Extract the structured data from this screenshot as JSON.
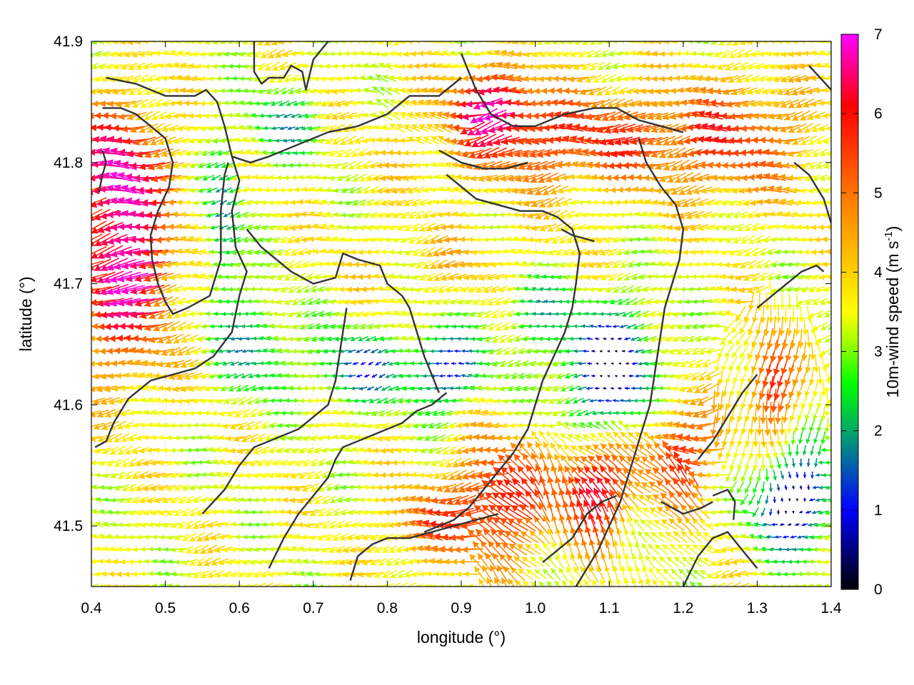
{
  "chart_data": {
    "type": "vector-field",
    "xlabel": "longitude (°)",
    "ylabel": "latitude (°)",
    "xlim": [
      0.4,
      1.4
    ],
    "ylim": [
      41.45,
      41.9
    ],
    "x_ticks": [
      "0.4",
      "0.5",
      "0.6",
      "0.7",
      "0.8",
      "0.9",
      "1.0",
      "1.1",
      "1.2",
      "1.3",
      "1.4"
    ],
    "x_tick_values": [
      0.4,
      0.5,
      0.6,
      0.7,
      0.8,
      0.9,
      1.0,
      1.1,
      1.2,
      1.3,
      1.4
    ],
    "y_ticks": [
      "41.5",
      "41.6",
      "41.7",
      "41.8",
      "41.9"
    ],
    "y_tick_values": [
      41.5,
      41.6,
      41.7,
      41.8,
      41.9
    ],
    "grid": true,
    "colorbar": {
      "label": "10m-wind speed (m s-1)",
      "label_main": "10m-wind speed (m s",
      "label_sup": "-1",
      "label_end": ")",
      "range": [
        0,
        7
      ],
      "ticks": [
        "0",
        "1",
        "2",
        "3",
        "4",
        "5",
        "6",
        "7"
      ],
      "tick_values": [
        0,
        1,
        2,
        3,
        4,
        5,
        6,
        7
      ],
      "colormap": [
        "#000000",
        "#0000ff",
        "#00ff00",
        "#ffff00",
        "#ffa500",
        "#ff0000",
        "#ff00ff"
      ]
    },
    "contour_color": "#333333",
    "contours": [
      [
        [
          0.42,
          41.87
        ],
        [
          0.46,
          41.865
        ],
        [
          0.5,
          41.855
        ],
        [
          0.54,
          41.855
        ],
        [
          0.555,
          41.86
        ],
        [
          0.57,
          41.85
        ],
        [
          0.58,
          41.83
        ],
        [
          0.59,
          41.805
        ],
        [
          0.615,
          41.8
        ],
        [
          0.64,
          41.805
        ],
        [
          0.68,
          41.815
        ],
        [
          0.72,
          41.825
        ],
        [
          0.76,
          41.83
        ],
        [
          0.8,
          41.84
        ],
        [
          0.83,
          41.855
        ],
        [
          0.87,
          41.855
        ],
        [
          0.9,
          41.87
        ]
      ],
      [
        [
          0.415,
          41.845
        ],
        [
          0.44,
          41.845
        ],
        [
          0.46,
          41.84
        ],
        [
          0.48,
          41.83
        ],
        [
          0.5,
          41.82
        ],
        [
          0.51,
          41.8
        ],
        [
          0.505,
          41.78
        ],
        [
          0.49,
          41.76
        ],
        [
          0.48,
          41.74
        ],
        [
          0.482,
          41.72
        ],
        [
          0.49,
          41.7
        ],
        [
          0.5,
          41.685
        ],
        [
          0.51,
          41.675
        ],
        [
          0.53,
          41.68
        ],
        [
          0.56,
          41.69
        ],
        [
          0.575,
          41.72
        ],
        [
          0.575,
          41.76
        ],
        [
          0.58,
          41.79
        ],
        [
          0.585,
          41.8
        ]
      ],
      [
        [
          0.41,
          41.775
        ],
        [
          0.415,
          41.79
        ],
        [
          0.42,
          41.8
        ],
        [
          0.415,
          41.81
        ]
      ],
      [
        [
          0.59,
          41.805
        ],
        [
          0.6,
          41.785
        ],
        [
          0.59,
          41.76
        ],
        [
          0.595,
          41.73
        ],
        [
          0.61,
          41.71
        ],
        [
          0.6,
          41.69
        ],
        [
          0.59,
          41.66
        ],
        [
          0.565,
          41.64
        ],
        [
          0.54,
          41.63
        ],
        [
          0.51,
          41.625
        ],
        [
          0.48,
          41.62
        ],
        [
          0.45,
          41.605
        ],
        [
          0.43,
          41.585
        ],
        [
          0.42,
          41.57
        ],
        [
          0.405,
          41.565
        ]
      ],
      [
        [
          0.62,
          41.9
        ],
        [
          0.62,
          41.875
        ],
        [
          0.63,
          41.865
        ],
        [
          0.64,
          41.87
        ],
        [
          0.66,
          41.87
        ],
        [
          0.67,
          41.88
        ],
        [
          0.685,
          41.875
        ],
        [
          0.69,
          41.86
        ],
        [
          0.7,
          41.885
        ],
        [
          0.72,
          41.9
        ]
      ],
      [
        [
          0.61,
          41.745
        ],
        [
          0.63,
          41.73
        ],
        [
          0.65,
          41.72
        ],
        [
          0.67,
          41.71
        ],
        [
          0.7,
          41.7
        ],
        [
          0.73,
          41.705
        ],
        [
          0.74,
          41.725
        ],
        [
          0.76,
          41.72
        ],
        [
          0.79,
          41.715
        ],
        [
          0.8,
          41.7
        ],
        [
          0.82,
          41.69
        ],
        [
          0.83,
          41.68
        ],
        [
          0.84,
          41.66
        ],
        [
          0.85,
          41.64
        ],
        [
          0.86,
          41.625
        ],
        [
          0.87,
          41.61
        ]
      ],
      [
        [
          0.64,
          41.465
        ],
        [
          0.66,
          41.49
        ],
        [
          0.68,
          41.51
        ],
        [
          0.7,
          41.525
        ],
        [
          0.72,
          41.54
        ],
        [
          0.73,
          41.555
        ],
        [
          0.74,
          41.565
        ],
        [
          0.76,
          41.57
        ],
        [
          0.78,
          41.575
        ],
        [
          0.8,
          41.58
        ],
        [
          0.82,
          41.585
        ],
        [
          0.84,
          41.595
        ],
        [
          0.86,
          41.6
        ],
        [
          0.88,
          41.61
        ]
      ],
      [
        [
          0.55,
          41.51
        ],
        [
          0.58,
          41.53
        ],
        [
          0.6,
          41.55
        ],
        [
          0.62,
          41.565
        ],
        [
          0.64,
          41.57
        ],
        [
          0.66,
          41.575
        ],
        [
          0.68,
          41.58
        ],
        [
          0.7,
          41.59
        ],
        [
          0.72,
          41.6
        ],
        [
          0.73,
          41.62
        ],
        [
          0.735,
          41.64
        ],
        [
          0.74,
          41.66
        ],
        [
          0.745,
          41.68
        ]
      ],
      [
        [
          0.75,
          41.455
        ],
        [
          0.76,
          41.475
        ],
        [
          0.78,
          41.485
        ],
        [
          0.8,
          41.49
        ],
        [
          0.83,
          41.49
        ],
        [
          0.86,
          41.495
        ],
        [
          0.89,
          41.5
        ],
        [
          0.92,
          41.505
        ],
        [
          0.95,
          41.51
        ]
      ],
      [
        [
          0.9,
          41.89
        ],
        [
          0.92,
          41.86
        ],
        [
          0.94,
          41.84
        ],
        [
          0.97,
          41.83
        ],
        [
          1.0,
          41.83
        ],
        [
          1.04,
          41.84
        ],
        [
          1.08,
          41.845
        ],
        [
          1.11,
          41.845
        ],
        [
          1.14,
          41.835
        ],
        [
          1.17,
          41.83
        ],
        [
          1.2,
          41.825
        ]
      ],
      [
        [
          0.87,
          41.81
        ],
        [
          0.9,
          41.8
        ],
        [
          0.93,
          41.795
        ],
        [
          0.96,
          41.795
        ],
        [
          0.99,
          41.8
        ]
      ],
      [
        [
          0.88,
          41.79
        ],
        [
          0.9,
          41.78
        ],
        [
          0.92,
          41.77
        ],
        [
          0.95,
          41.765
        ],
        [
          0.98,
          41.76
        ],
        [
          1.01,
          41.76
        ],
        [
          1.03,
          41.755
        ],
        [
          1.05,
          41.745
        ],
        [
          1.06,
          41.725
        ],
        [
          1.055,
          41.7
        ],
        [
          1.05,
          41.68
        ],
        [
          1.04,
          41.66
        ],
        [
          1.025,
          41.64
        ],
        [
          1.01,
          41.62
        ],
        [
          1.0,
          41.6
        ],
        [
          0.99,
          41.58
        ],
        [
          0.97,
          41.56
        ],
        [
          0.95,
          41.545
        ],
        [
          0.93,
          41.53
        ],
        [
          0.91,
          41.515
        ],
        [
          0.89,
          41.505
        ],
        [
          0.87,
          41.5
        ],
        [
          0.85,
          41.495
        ]
      ],
      [
        [
          1.035,
          41.745
        ],
        [
          1.05,
          41.74
        ],
        [
          1.08,
          41.735
        ]
      ],
      [
        [
          1.14,
          41.82
        ],
        [
          1.15,
          41.8
        ],
        [
          1.17,
          41.78
        ],
        [
          1.19,
          41.765
        ],
        [
          1.2,
          41.745
        ],
        [
          1.195,
          41.72
        ],
        [
          1.185,
          41.7
        ],
        [
          1.175,
          41.68
        ],
        [
          1.17,
          41.66
        ],
        [
          1.165,
          41.64
        ],
        [
          1.16,
          41.62
        ],
        [
          1.155,
          41.6
        ],
        [
          1.145,
          41.58
        ],
        [
          1.135,
          41.56
        ],
        [
          1.125,
          41.54
        ],
        [
          1.115,
          41.52
        ],
        [
          1.1,
          41.5
        ],
        [
          1.085,
          41.48
        ],
        [
          1.07,
          41.465
        ],
        [
          1.055,
          41.45
        ]
      ],
      [
        [
          1.01,
          41.47
        ],
        [
          1.03,
          41.48
        ],
        [
          1.05,
          41.49
        ],
        [
          1.07,
          41.51
        ],
        [
          1.09,
          41.52
        ],
        [
          1.11,
          41.525
        ]
      ],
      [
        [
          1.2,
          41.45
        ],
        [
          1.22,
          41.475
        ],
        [
          1.24,
          41.49
        ],
        [
          1.26,
          41.495
        ],
        [
          1.28,
          41.48
        ],
        [
          1.3,
          41.465
        ]
      ],
      [
        [
          1.17,
          41.52
        ],
        [
          1.2,
          41.51
        ],
        [
          1.225,
          41.515
        ],
        [
          1.24,
          41.52
        ]
      ],
      [
        [
          1.24,
          41.525
        ],
        [
          1.26,
          41.53
        ],
        [
          1.27,
          41.52
        ],
        [
          1.268,
          41.505
        ]
      ],
      [
        [
          1.22,
          41.555
        ],
        [
          1.24,
          41.57
        ],
        [
          1.26,
          41.59
        ],
        [
          1.28,
          41.61
        ],
        [
          1.3,
          41.625
        ]
      ],
      [
        [
          1.3,
          41.68
        ],
        [
          1.32,
          41.69
        ],
        [
          1.34,
          41.7
        ],
        [
          1.36,
          41.71
        ],
        [
          1.38,
          41.715
        ],
        [
          1.39,
          41.71
        ]
      ],
      [
        [
          1.35,
          41.8
        ],
        [
          1.37,
          41.79
        ],
        [
          1.39,
          41.77
        ],
        [
          1.4,
          41.75
        ]
      ],
      [
        [
          1.37,
          41.88
        ],
        [
          1.385,
          41.87
        ],
        [
          1.4,
          41.86
        ]
      ]
    ]
  }
}
